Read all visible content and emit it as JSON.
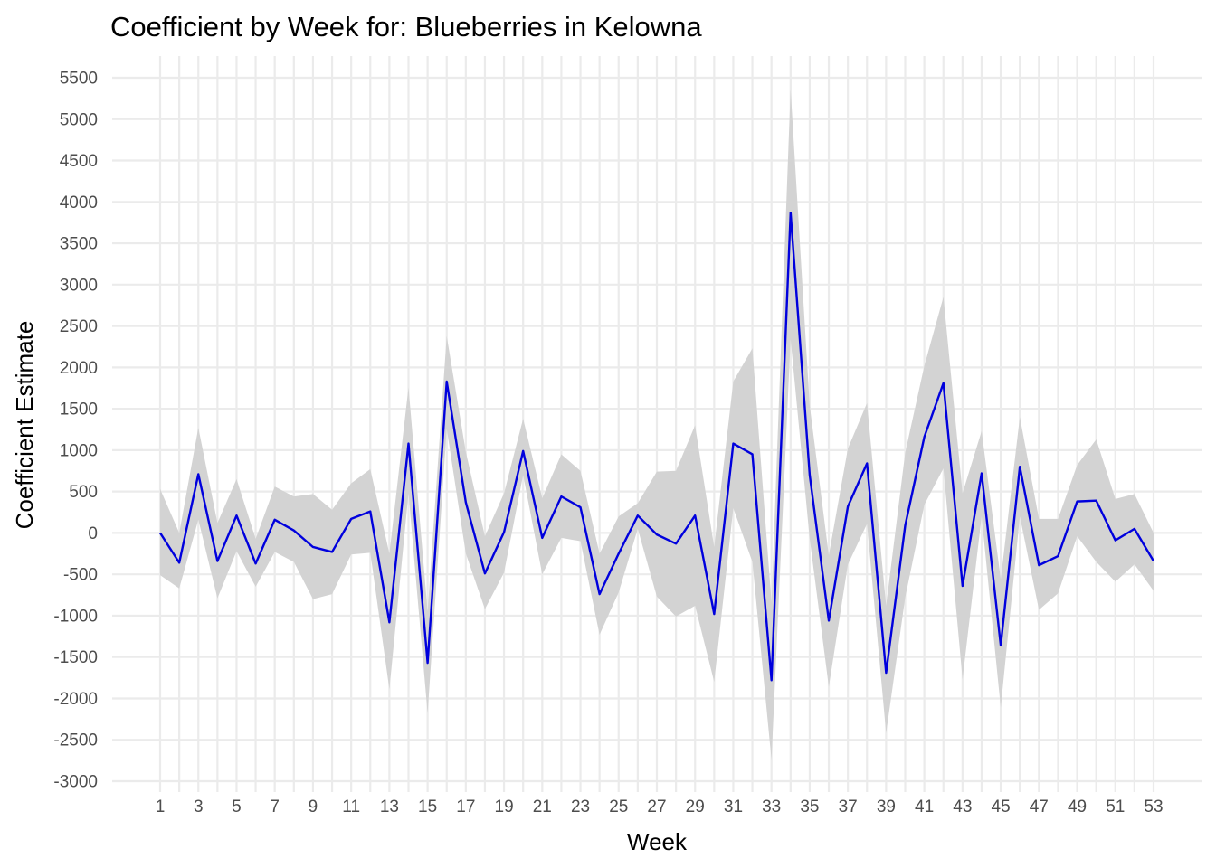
{
  "chart_data": {
    "type": "line",
    "title": "Coefficient by Week for: Blueberries in Kelowna",
    "xlabel": "Week",
    "ylabel": "Coefficient Estimate",
    "x_ticks": [
      "1",
      "3",
      "5",
      "7",
      "9",
      "11",
      "13",
      "15",
      "17",
      "19",
      "21",
      "23",
      "25",
      "27",
      "29",
      "31",
      "33",
      "35",
      "37",
      "39",
      "41",
      "43",
      "45",
      "47",
      "49",
      "51",
      "53"
    ],
    "y_ticks": [
      "-3000",
      "-2500",
      "-2000",
      "-1500",
      "-1000",
      "-500",
      "0",
      "500",
      "1000",
      "1500",
      "2000",
      "2500",
      "3000",
      "3500",
      "4000",
      "4500",
      "5000",
      "5500"
    ],
    "xlim": [
      1,
      53
    ],
    "ylim": [
      -3000,
      5500
    ],
    "grid": true,
    "line_color": "#0000dd",
    "ribbon_color": "#d3d3d3",
    "series": [
      {
        "x": [
          1,
          2,
          3,
          4,
          5,
          6,
          7,
          8,
          9,
          10,
          11,
          12,
          13,
          14,
          15,
          16,
          17,
          18,
          19,
          20,
          21,
          22,
          23,
          24,
          25,
          26,
          27,
          28,
          29,
          30,
          31,
          32,
          33,
          34,
          35,
          36,
          37,
          38,
          39,
          40,
          41,
          42,
          43,
          44,
          45,
          46,
          47,
          48,
          49,
          50,
          51,
          52,
          53
        ],
        "y": [
          0,
          -360,
          710,
          -340,
          210,
          -370,
          160,
          30,
          -170,
          -230,
          170,
          260,
          -1080,
          1080,
          -1570,
          1830,
          370,
          -490,
          10,
          990,
          -60,
          440,
          310,
          -740,
          -250,
          210,
          -20,
          -130,
          210,
          -980,
          1080,
          950,
          -1780,
          3870,
          700,
          -1060,
          320,
          840,
          -1690,
          90,
          1160,
          1810,
          -640,
          720,
          -1360,
          800,
          -390,
          -280,
          380,
          390,
          -90,
          50,
          -340
        ],
        "lower": [
          -510,
          -670,
          160,
          -790,
          -220,
          -650,
          -230,
          -350,
          -800,
          -740,
          -260,
          -240,
          -1890,
          480,
          -2180,
          1260,
          -250,
          -920,
          -480,
          700,
          -500,
          -60,
          -100,
          -1230,
          -720,
          50,
          -770,
          -1010,
          -880,
          -1800,
          300,
          -350,
          -2740,
          2340,
          -70,
          -1860,
          -380,
          110,
          -2420,
          -780,
          340,
          780,
          -1770,
          200,
          -2110,
          200,
          -930,
          -730,
          -40,
          -350,
          -590,
          -380,
          -700
        ],
        "upper": [
          530,
          0,
          1270,
          120,
          650,
          -70,
          560,
          440,
          470,
          280,
          600,
          770,
          -250,
          1760,
          -950,
          2380,
          980,
          -40,
          480,
          1380,
          420,
          950,
          750,
          -250,
          200,
          360,
          740,
          750,
          1300,
          -170,
          1830,
          2230,
          -840,
          5360,
          1540,
          -270,
          1020,
          1570,
          -880,
          970,
          2020,
          2850,
          480,
          1230,
          -560,
          1400,
          170,
          170,
          820,
          1130,
          410,
          470,
          0
        ]
      }
    ]
  }
}
